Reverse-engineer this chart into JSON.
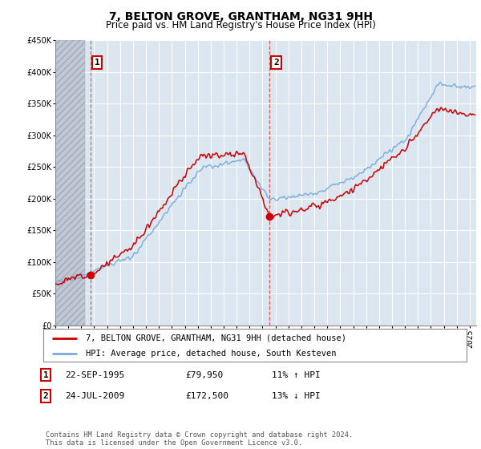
{
  "title": "7, BELTON GROVE, GRANTHAM, NG31 9HH",
  "subtitle": "Price paid vs. HM Land Registry's House Price Index (HPI)",
  "ylim": [
    0,
    450000
  ],
  "yticks": [
    0,
    50000,
    100000,
    150000,
    200000,
    250000,
    300000,
    350000,
    400000,
    450000
  ],
  "xlim_start": 1993.0,
  "xlim_end": 2025.5,
  "plot_bg": "#dce6f1",
  "grid_color": "#ffffff",
  "red_line_color": "#cc0000",
  "blue_line_color": "#7aabdb",
  "hatch_color": "#c0c8d4",
  "sale1_year": 1995.72,
  "sale1_price": 79950,
  "sale2_year": 2009.55,
  "sale2_price": 172500,
  "legend_label1": "7, BELTON GROVE, GRANTHAM, NG31 9HH (detached house)",
  "legend_label2": "HPI: Average price, detached house, South Kesteven",
  "table_row1": [
    "1",
    "22-SEP-1995",
    "£79,950",
    "11% ↑ HPI"
  ],
  "table_row2": [
    "2",
    "24-JUL-2009",
    "£172,500",
    "13% ↓ HPI"
  ],
  "footer": "Contains HM Land Registry data © Crown copyright and database right 2024.\nThis data is licensed under the Open Government Licence v3.0.",
  "title_fontsize": 10,
  "subtitle_fontsize": 8.5,
  "tick_fontsize": 7
}
